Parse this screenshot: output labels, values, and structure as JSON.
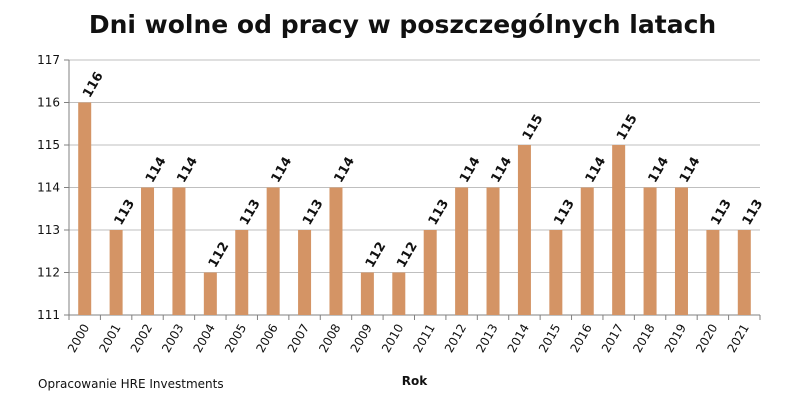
{
  "chart_data": {
    "type": "bar",
    "title": "Dni wolne od pracy w poszczególnych latach",
    "xlabel": "Rok",
    "ylabel": "",
    "ylim": [
      111,
      117
    ],
    "yticks": [
      111,
      112,
      113,
      114,
      115,
      116,
      117
    ],
    "grid": true,
    "bar_color": "#D49465",
    "categories": [
      "2000",
      "2001",
      "2002",
      "2003",
      "2004",
      "2005",
      "2006",
      "2007",
      "2008",
      "2009",
      "2010",
      "2011",
      "2012",
      "2013",
      "2014",
      "2015",
      "2016",
      "2017",
      "2018",
      "2019",
      "2020",
      "2021"
    ],
    "values": [
      116,
      113,
      114,
      114,
      112,
      113,
      114,
      113,
      114,
      112,
      112,
      113,
      114,
      114,
      115,
      113,
      114,
      115,
      114,
      114,
      113,
      113
    ]
  },
  "source_note": "Opracowanie HRE Investments"
}
